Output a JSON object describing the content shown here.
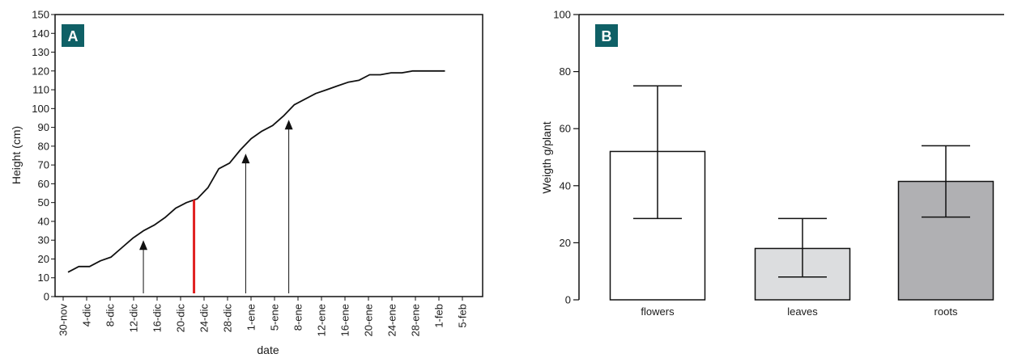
{
  "colors": {
    "panel_label_bg": "#0f6066",
    "highlight": "#e02020",
    "line": "#111111"
  },
  "chart_data": [
    {
      "type": "line",
      "panel_label": "A",
      "xlabel": "date",
      "ylabel": "Height (cm)",
      "ylim": [
        0,
        150
      ],
      "y_ticks": [
        0,
        10,
        20,
        30,
        40,
        50,
        60,
        70,
        80,
        90,
        100,
        110,
        120,
        130,
        140,
        150
      ],
      "x_tick_labels": [
        "30-nov",
        "4-dic",
        "8-dic",
        "12-dic",
        "16-dic",
        "20-dic",
        "24-dic",
        "28-dic",
        "1-ene",
        "5-ene",
        "8-ene",
        "12-ene",
        "16-ene",
        "20-ene",
        "24-ene",
        "28-ene",
        "1-feb",
        "5-feb"
      ],
      "series": [
        {
          "x": [
            0,
            1,
            2,
            3,
            4,
            5,
            6,
            7,
            8,
            9,
            10,
            11,
            12,
            13,
            14,
            15,
            16,
            17,
            18,
            19,
            20,
            21,
            22,
            23,
            24,
            25,
            26,
            27,
            28,
            29,
            30,
            31,
            32,
            33,
            34,
            35
          ],
          "values": [
            13,
            16,
            16,
            19,
            21,
            26,
            31,
            35,
            38,
            42,
            47,
            50,
            52,
            58,
            68,
            71,
            78,
            84,
            88,
            91,
            96,
            102,
            105,
            108,
            110,
            112,
            114,
            115,
            118,
            118,
            119,
            119,
            120,
            120,
            120,
            120
          ]
        }
      ],
      "arrows_at_x": [
        7,
        16.5,
        20.5
      ],
      "highlight_x": 11.7
    },
    {
      "type": "bar",
      "panel_label": "B",
      "categories": [
        "flowers",
        "leaves",
        "roots"
      ],
      "values": [
        52,
        18,
        41.5
      ],
      "error_low": [
        28.5,
        8,
        29
      ],
      "error_high": [
        75,
        28.5,
        54
      ],
      "bar_colors": [
        "#ffffff",
        "#dcdddf",
        "#b0b0b3"
      ],
      "ylabel": "Weigth g/plant",
      "ylim": [
        0,
        100
      ],
      "y_ticks": [
        0,
        20,
        40,
        60,
        80,
        100
      ]
    }
  ]
}
